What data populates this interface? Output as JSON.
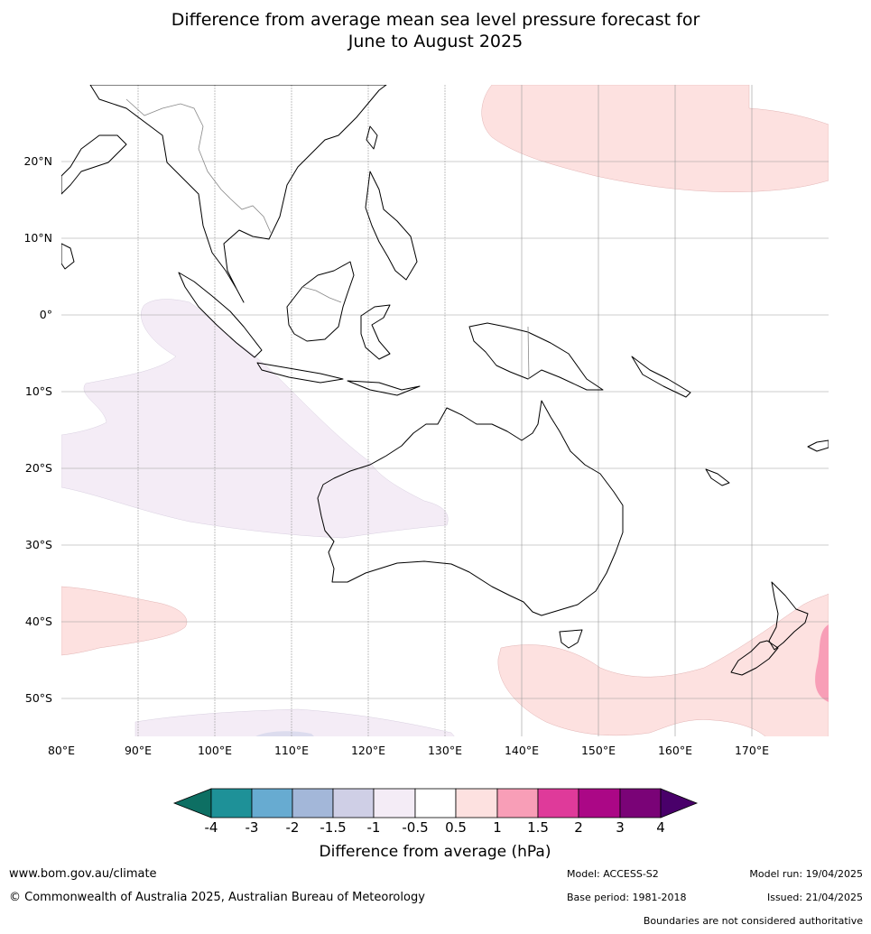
{
  "title_line1": "Difference from average mean sea level pressure forecast for",
  "title_line2": "June to August 2025",
  "map": {
    "lat_labels": [
      "20°N",
      "10°N",
      "0°",
      "10°S",
      "20°S",
      "30°S",
      "40°S",
      "50°S"
    ],
    "lon_labels": [
      "80°E",
      "90°E",
      "100°E",
      "110°E",
      "120°E",
      "130°E",
      "140°E",
      "150°E",
      "160°E",
      "170°E"
    ]
  },
  "colorbar": {
    "ticks": [
      "-4",
      "-3",
      "-2",
      "-1.5",
      "-1",
      "-0.5",
      "0.5",
      "1",
      "1.5",
      "2",
      "3",
      "4"
    ],
    "colors": [
      "#0d6f63",
      "#1e9198",
      "#67abd1",
      "#a3b7d9",
      "#cfcfe6",
      "#f4ecf6",
      "#ffffff",
      "#fde1e0",
      "#f89eb7",
      "#df3a9a",
      "#ab0786",
      "#7a0377",
      "#49006a"
    ],
    "label": "Difference from average (hPa)"
  },
  "footer": {
    "website": "www.bom.gov.au/climate",
    "copyright": "© Commonwealth of Australia 2025, Australian Bureau of Meteorology",
    "model": "Model: ACCESS-S2",
    "base_period": "Base period: 1981-2018",
    "model_run": "Model run: 19/04/2025",
    "issued": "Issued: 21/04/2025",
    "disclaimer": "Boundaries are not considered authoritative"
  }
}
